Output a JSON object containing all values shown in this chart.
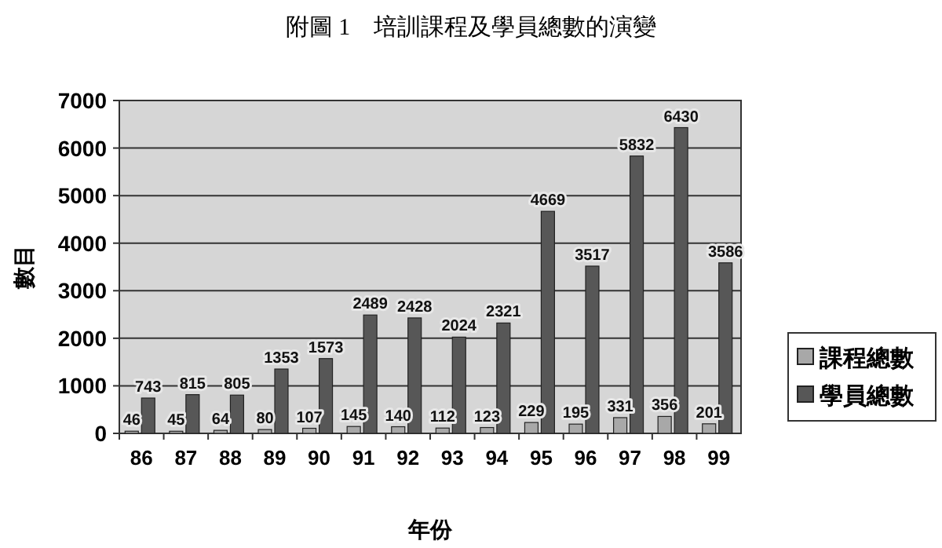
{
  "chart_data": {
    "type": "bar",
    "title": "附圖 1　培訓課程及學員總數的演變",
    "xlabel": "年份",
    "ylabel": "數目",
    "categories": [
      "86",
      "87",
      "88",
      "89",
      "90",
      "91",
      "92",
      "93",
      "94",
      "95",
      "96",
      "97",
      "98",
      "99"
    ],
    "series": [
      {
        "name": "課程總數",
        "color": "#a8a8a8",
        "values": [
          46,
          45,
          64,
          80,
          107,
          145,
          140,
          112,
          123,
          229,
          195,
          331,
          356,
          201
        ]
      },
      {
        "name": "學員總數",
        "color": "#575757",
        "values": [
          743,
          815,
          805,
          1353,
          1573,
          2489,
          2428,
          2024,
          2321,
          4669,
          3517,
          5832,
          6430,
          3586
        ]
      }
    ],
    "ylim": [
      0,
      7000
    ],
    "yticks": [
      0,
      1000,
      2000,
      3000,
      4000,
      5000,
      6000,
      7000
    ],
    "grid": "y",
    "legend": "right",
    "data_labels": true
  }
}
